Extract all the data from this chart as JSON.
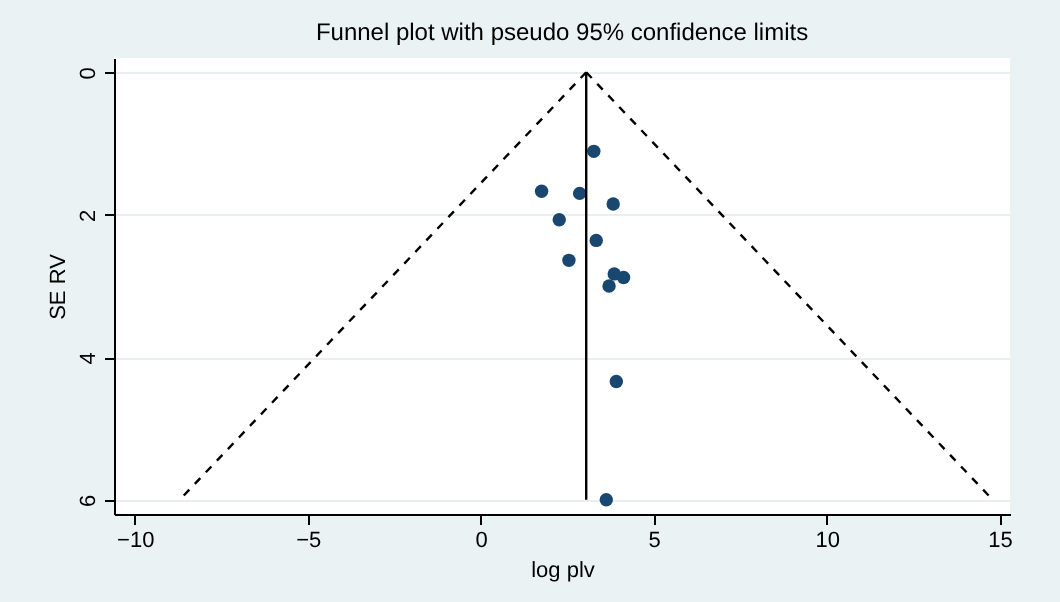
{
  "chart_data": {
    "type": "scatter",
    "title": "Funnel plot with pseudo 95% confidence limits",
    "xlabel": "log plv",
    "ylabel": "SE RV",
    "xlim": [
      -10.6,
      15.3
    ],
    "xticks": [
      -10,
      -5,
      0,
      5,
      10,
      15
    ],
    "ylim": [
      6.2,
      -0.2
    ],
    "yticks": [
      0,
      2,
      4,
      6
    ],
    "grid": "y",
    "series": [
      {
        "marker": "circle",
        "color": "#1a476f",
        "x": [
          3.27,
          1.76,
          2.86,
          3.83,
          2.27,
          3.34,
          2.55,
          3.86,
          4.13,
          3.71,
          3.92,
          3.63
        ],
        "values": [
          1.11,
          1.67,
          1.7,
          1.85,
          2.07,
          2.36,
          2.64,
          2.83,
          2.88,
          3.0,
          4.34,
          6.0
        ]
      },
      {
        "type": "line",
        "color": "#000000",
        "line_style": "solid",
        "x": [
          3.05,
          3.05
        ],
        "values": [
          0,
          6
        ]
      },
      {
        "type": "line",
        "color": "#000000",
        "line_style": "dashed",
        "x": [
          3.05,
          -8.7
        ],
        "values": [
          0,
          6
        ]
      },
      {
        "type": "line",
        "color": "#000000",
        "line_style": "dashed",
        "x": [
          3.05,
          14.8
        ],
        "values": [
          0,
          6
        ]
      }
    ]
  }
}
